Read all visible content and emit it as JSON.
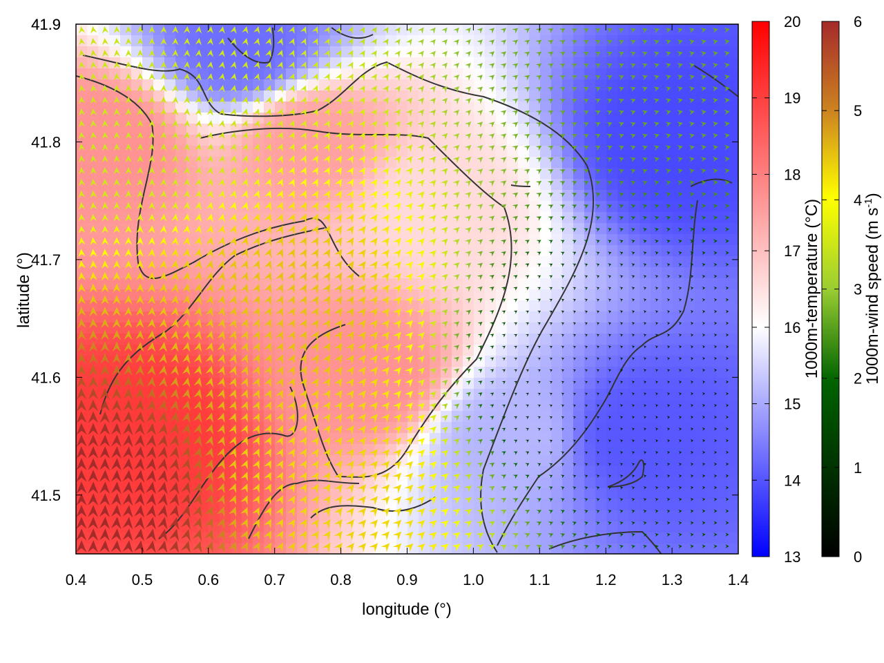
{
  "chart_data": {
    "type": "heatmap",
    "xlabel": "longitude (°)",
    "ylabel": "latitude (°)",
    "xlim": [
      0.4,
      1.4
    ],
    "ylim": [
      41.45,
      41.9
    ],
    "xticks": [
      "0.4",
      "0.5",
      "0.6",
      "0.7",
      "0.8",
      "0.9",
      "1.0",
      "1.1",
      "1.2",
      "1.3",
      "1.4"
    ],
    "yticks": [
      "41.5",
      "41.6",
      "41.7",
      "41.8",
      "41.9"
    ],
    "temperature": {
      "colorbar_label": "1000m-temperature (°C)",
      "range": [
        13,
        20
      ],
      "ticks": [
        "13",
        "14",
        "15",
        "16",
        "17",
        "18",
        "19",
        "20"
      ],
      "colormap": [
        "#0000ff",
        "#ffffff",
        "#ff0000"
      ],
      "regions": [
        {
          "lon": 0.5,
          "lat": 41.55,
          "value": 19.2
        },
        {
          "lon": 0.45,
          "lat": 41.8,
          "value": 18.0
        },
        {
          "lon": 0.85,
          "lat": 41.6,
          "value": 18.0
        },
        {
          "lon": 0.75,
          "lat": 41.8,
          "value": 17.8
        },
        {
          "lon": 0.95,
          "lat": 41.75,
          "value": 17.0
        },
        {
          "lon": 1.05,
          "lat": 41.55,
          "value": 15.5
        },
        {
          "lon": 1.25,
          "lat": 41.55,
          "value": 14.2
        },
        {
          "lon": 1.3,
          "lat": 41.8,
          "value": 14.0
        },
        {
          "lon": 0.65,
          "lat": 41.88,
          "value": 14.5
        }
      ]
    },
    "wind_speed": {
      "colorbar_label": "1000m-wind speed (m s",
      "colorbar_label_sup": "-1",
      "colorbar_label_end": ")",
      "range": [
        0,
        6
      ],
      "ticks": [
        "0",
        "1",
        "2",
        "3",
        "4",
        "5",
        "6"
      ],
      "colormap": [
        "#000000",
        "#006400",
        "#9acd32",
        "#ffff00",
        "#cd8520",
        "#a52a2a"
      ],
      "regions": [
        {
          "lon": 0.45,
          "lat": 41.5,
          "value": 6.0
        },
        {
          "lon": 0.7,
          "lat": 41.65,
          "value": 4.2
        },
        {
          "lon": 0.75,
          "lat": 41.52,
          "value": 4.0
        },
        {
          "lon": 0.5,
          "lat": 41.82,
          "value": 3.0
        },
        {
          "lon": 1.3,
          "lat": 41.88,
          "value": 2.0
        },
        {
          "lon": 1.2,
          "lat": 41.6,
          "value": 0.4
        }
      ]
    }
  }
}
